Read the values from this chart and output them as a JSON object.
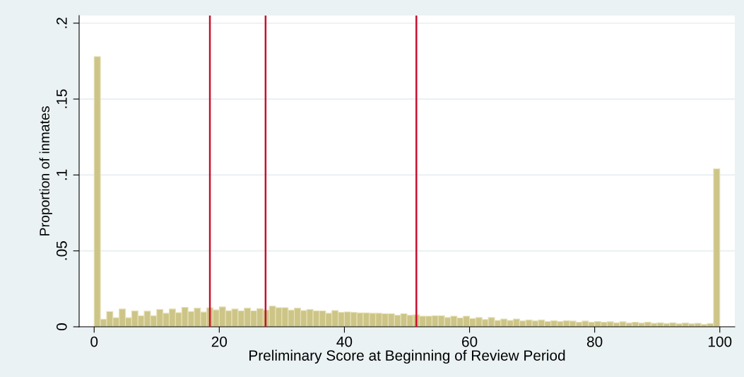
{
  "chart_data": {
    "type": "histogram",
    "xlabel": "Preliminary Score at Beginning of Review Period",
    "ylabel": "Proportion of inmates",
    "bins": [
      0,
      1,
      2,
      3,
      4,
      5,
      6,
      7,
      8,
      9,
      10,
      11,
      12,
      13,
      14,
      15,
      16,
      17,
      18,
      19,
      20,
      21,
      22,
      23,
      24,
      25,
      26,
      27,
      28,
      29,
      30,
      31,
      32,
      33,
      34,
      35,
      36,
      37,
      38,
      39,
      40,
      41,
      42,
      43,
      44,
      45,
      46,
      47,
      48,
      49,
      50,
      51,
      52,
      53,
      54,
      55,
      56,
      57,
      58,
      59,
      60,
      61,
      62,
      63,
      64,
      65,
      66,
      67,
      68,
      69,
      70,
      71,
      72,
      73,
      74,
      75,
      76,
      77,
      78,
      79,
      80,
      81,
      82,
      83,
      84,
      85,
      86,
      87,
      88,
      89,
      90,
      91,
      92,
      93,
      94,
      95,
      96,
      97,
      98,
      99,
      100
    ],
    "values": [
      0.178,
      0.005,
      0.01,
      0.006,
      0.0117,
      0.006,
      0.0104,
      0.0073,
      0.0103,
      0.0073,
      0.0114,
      0.0089,
      0.0117,
      0.0093,
      0.0128,
      0.0101,
      0.0123,
      0.0097,
      0.0125,
      0.0111,
      0.0131,
      0.0106,
      0.0117,
      0.0105,
      0.0123,
      0.0105,
      0.012,
      0.011,
      0.0136,
      0.0126,
      0.0126,
      0.011,
      0.0123,
      0.0107,
      0.0114,
      0.0105,
      0.0105,
      0.0089,
      0.0107,
      0.0095,
      0.0098,
      0.0095,
      0.0092,
      0.0092,
      0.0089,
      0.0089,
      0.0086,
      0.0086,
      0.0076,
      0.0086,
      0.0076,
      0.0079,
      0.007,
      0.007,
      0.0073,
      0.0073,
      0.0061,
      0.007,
      0.0058,
      0.007,
      0.0055,
      0.0061,
      0.0048,
      0.0061,
      0.0042,
      0.0051,
      0.0042,
      0.0051,
      0.0039,
      0.0045,
      0.0039,
      0.0045,
      0.0035,
      0.004,
      0.0035,
      0.004,
      0.0038,
      0.003,
      0.0038,
      0.003,
      0.0035,
      0.003,
      0.0033,
      0.0027,
      0.0033,
      0.0025,
      0.003,
      0.0025,
      0.003,
      0.0023,
      0.0027,
      0.0022,
      0.0027,
      0.002,
      0.0025,
      0.002,
      0.0023,
      0.0015,
      0.0022,
      0.104
    ],
    "color": "#cdc587",
    "xlim": [
      -2.4,
      102.4
    ],
    "ylim": [
      0,
      0.205
    ],
    "xticks": [
      0,
      20,
      40,
      60,
      80,
      100
    ],
    "yticks": [
      0,
      {
        "value": 0.05,
        "label": ".05"
      },
      {
        "value": 0.1,
        "label": ".1"
      },
      {
        "value": 0.15,
        "label": ".15"
      },
      {
        "value": 0.2,
        "label": ".2"
      }
    ],
    "grid": "y",
    "ref_lines": [
      {
        "axis": "x",
        "value": 18.5,
        "color": "#c8102e"
      },
      {
        "axis": "x",
        "value": 27.4,
        "color": "#c8102e"
      },
      {
        "axis": "x",
        "value": 51.5,
        "color": "#c8102e"
      }
    ]
  }
}
